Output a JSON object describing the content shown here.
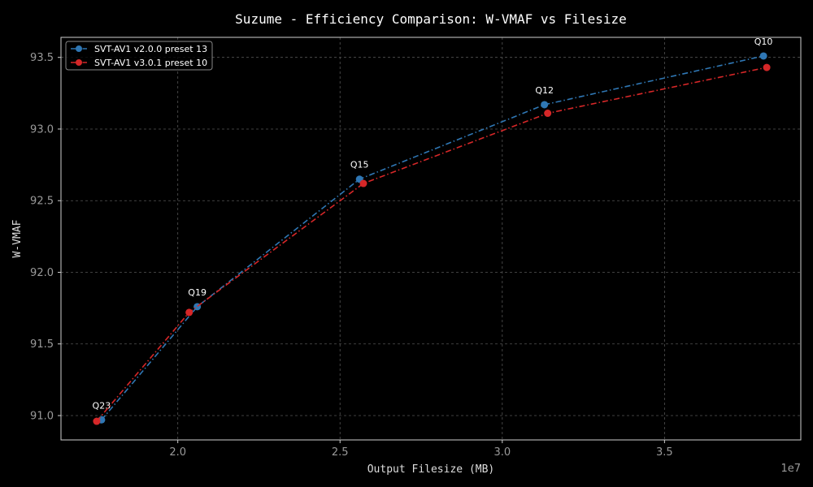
{
  "chart_data": {
    "type": "line",
    "title": "Suzume - Efficiency Comparison: W-VMAF vs Filesize",
    "xlabel": "Output Filesize (MB)",
    "ylabel": "W-VMAF",
    "x_offset_label": "1e7",
    "xlim": [
      16400000,
      39200000
    ],
    "ylim": [
      90.83,
      93.64
    ],
    "x_ticks": [
      {
        "value": 20000000,
        "label": "2.0"
      },
      {
        "value": 25000000,
        "label": "2.5"
      },
      {
        "value": 30000000,
        "label": "3.0"
      },
      {
        "value": 35000000,
        "label": "3.5"
      }
    ],
    "y_ticks": [
      {
        "value": 91.0,
        "label": "91.0"
      },
      {
        "value": 91.5,
        "label": "91.5"
      },
      {
        "value": 92.0,
        "label": "92.0"
      },
      {
        "value": 92.5,
        "label": "92.5"
      },
      {
        "value": 93.0,
        "label": "93.0"
      },
      {
        "value": 93.5,
        "label": "93.5"
      }
    ],
    "grid": true,
    "legend_position": "top-left",
    "series": [
      {
        "name": "SVT-AV1 v2.0.0 preset 13",
        "color": "#2f77b4",
        "points": [
          {
            "x": 17650000,
            "y": 90.97,
            "label": "Q23"
          },
          {
            "x": 20600000,
            "y": 91.76,
            "label": "Q19"
          },
          {
            "x": 25600000,
            "y": 92.65,
            "label": "Q15"
          },
          {
            "x": 31300000,
            "y": 93.17,
            "label": "Q12"
          },
          {
            "x": 38050000,
            "y": 93.51,
            "label": "Q10"
          }
        ]
      },
      {
        "name": "SVT-AV1 v3.0.1 preset 10",
        "color": "#d62728",
        "points": [
          {
            "x": 17500000,
            "y": 90.96
          },
          {
            "x": 20350000,
            "y": 91.72
          },
          {
            "x": 25720000,
            "y": 92.62
          },
          {
            "x": 31400000,
            "y": 93.11
          },
          {
            "x": 38150000,
            "y": 93.43
          }
        ]
      }
    ]
  }
}
